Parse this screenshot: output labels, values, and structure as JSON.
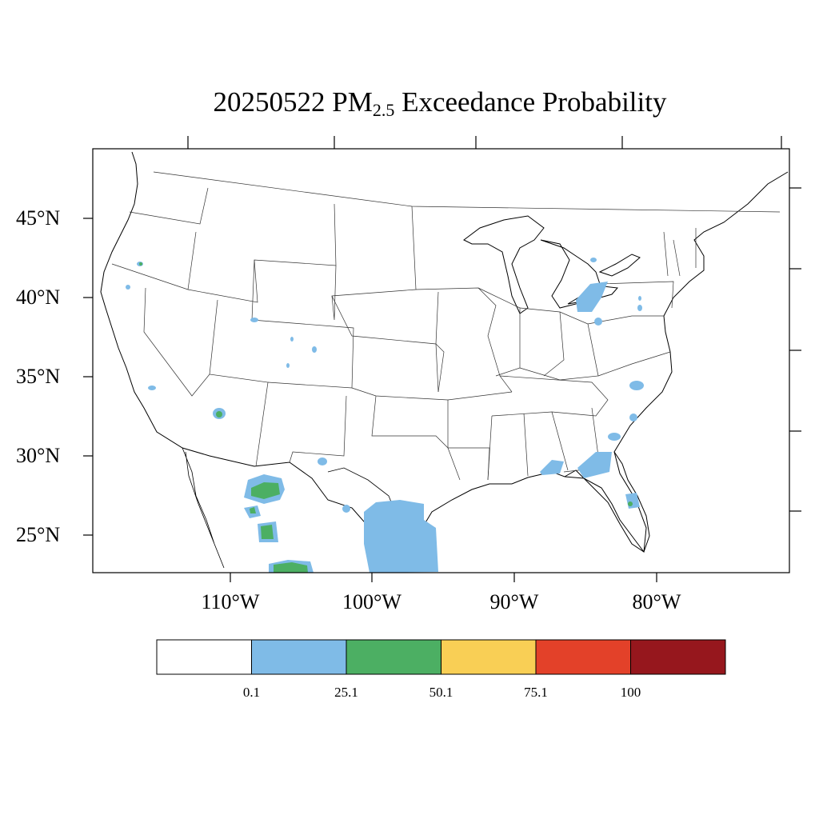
{
  "title": {
    "date": "20250522",
    "pollutant": "PM",
    "subscript": "2.5",
    "rest": "Exceedance Probability"
  },
  "axes": {
    "lat_labels": [
      "45°N",
      "40°N",
      "35°N",
      "30°N",
      "25°N"
    ],
    "lon_labels": [
      "110°W",
      "100°W",
      "90°W",
      "80°W"
    ]
  },
  "legend": {
    "colors": [
      "#ffffff",
      "#7fbbe7",
      "#4caf63",
      "#f9cf55",
      "#e34129",
      "#96171d"
    ],
    "labels": [
      "0.1",
      "25.1",
      "50.1",
      "75.1",
      "100"
    ]
  },
  "colors": {
    "blue": "#7fbbe7",
    "green": "#4caf63",
    "outline": "#000000"
  }
}
